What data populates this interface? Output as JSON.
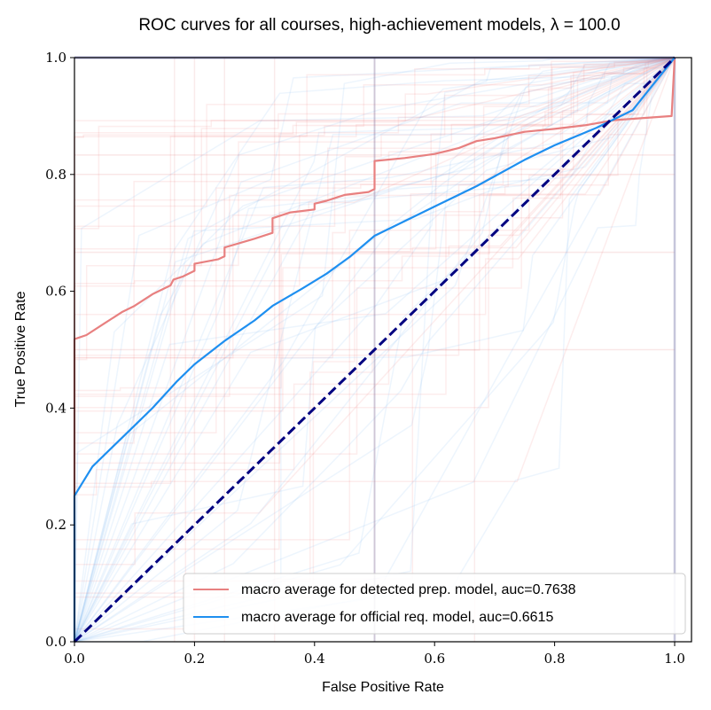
{
  "chart_data": {
    "type": "line",
    "title": "ROC curves for all courses, high-achievement models, λ = 100.0",
    "xlabel": "False Positive Rate",
    "ylabel": "True Positive Rate",
    "xlim": [
      0.0,
      1.0
    ],
    "ylim": [
      0.0,
      1.0
    ],
    "xticks": [
      "0.0",
      "0.2",
      "0.4",
      "0.6",
      "0.8",
      "1.0"
    ],
    "yticks": [
      "0.0",
      "0.2",
      "0.4",
      "0.6",
      "0.8",
      "1.0"
    ],
    "grid": false,
    "legend_position": "lower-right",
    "background_curves": "many faint per-course ROC curves (red and blue), transparent",
    "series": [
      {
        "name": "macro average for detected prep. model, auc=0.7638",
        "color": "#e88080",
        "x": [
          0.0,
          0.0,
          0.02,
          0.05,
          0.08,
          0.1,
          0.13,
          0.16,
          0.165,
          0.18,
          0.2,
          0.2,
          0.24,
          0.25,
          0.25,
          0.3,
          0.33,
          0.33,
          0.36,
          0.4,
          0.4,
          0.42,
          0.45,
          0.49,
          0.5,
          0.5,
          0.55,
          0.6,
          0.64,
          0.67,
          0.7,
          0.75,
          0.8,
          0.85,
          0.9,
          0.995,
          1.0
        ],
        "y": [
          0.0,
          0.518,
          0.525,
          0.545,
          0.565,
          0.575,
          0.595,
          0.61,
          0.62,
          0.625,
          0.635,
          0.647,
          0.655,
          0.66,
          0.675,
          0.69,
          0.7,
          0.725,
          0.735,
          0.74,
          0.75,
          0.755,
          0.765,
          0.77,
          0.775,
          0.823,
          0.828,
          0.835,
          0.845,
          0.857,
          0.862,
          0.873,
          0.878,
          0.884,
          0.893,
          0.9,
          1.0
        ]
      },
      {
        "name": "macro average for official req. model, auc=0.6615",
        "color": "#1e8ff0",
        "x": [
          0.0,
          0.0,
          0.03,
          0.07,
          0.1,
          0.13,
          0.17,
          0.2,
          0.25,
          0.3,
          0.33,
          0.38,
          0.42,
          0.46,
          0.5,
          0.55,
          0.6,
          0.67,
          0.75,
          0.8,
          0.87,
          0.93,
          1.0
        ],
        "y": [
          0.0,
          0.25,
          0.3,
          0.34,
          0.37,
          0.4,
          0.445,
          0.475,
          0.515,
          0.55,
          0.575,
          0.605,
          0.63,
          0.66,
          0.695,
          0.72,
          0.745,
          0.78,
          0.825,
          0.85,
          0.88,
          0.91,
          1.0
        ]
      },
      {
        "name": "",
        "color": "#000080",
        "style": "dashed",
        "x": [
          0.0,
          1.0
        ],
        "y": [
          0.0,
          1.0
        ]
      }
    ]
  }
}
